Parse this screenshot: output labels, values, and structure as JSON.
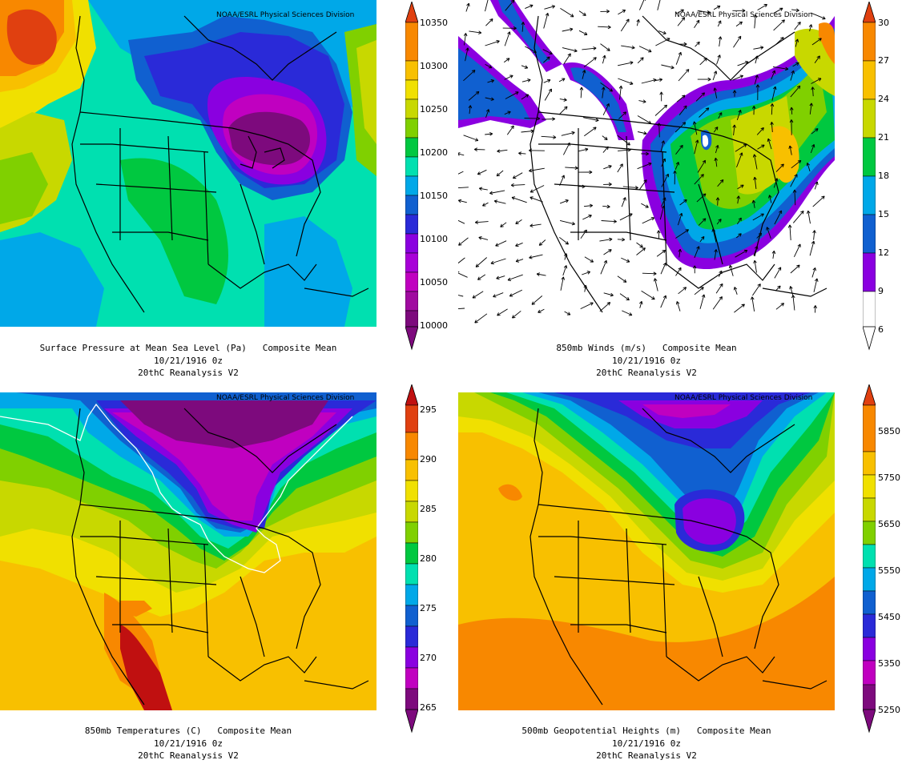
{
  "credit": "NOAA/ESRL Physical Sciences Division",
  "panels": [
    {
      "id": "slp",
      "caption_line1": "Surface Pressure at Mean Sea Level (Pa)   Composite Mean",
      "caption_line2": "10/21/1916 0z",
      "caption_line3": "20thC Reanalysis V2",
      "colorbar_labels": [
        "10350",
        "10300",
        "10250",
        "10200",
        "10150",
        "10100",
        "10050",
        "10000"
      ]
    },
    {
      "id": "winds",
      "caption_line1": "850mb Winds (m/s)   Composite Mean",
      "caption_line2": "10/21/1916 0z",
      "caption_line3": "20thC Reanalysis V2",
      "colorbar_labels": [
        "30",
        "27",
        "24",
        "21",
        "18",
        "15",
        "12",
        "9",
        "6"
      ]
    },
    {
      "id": "temp",
      "caption_line1": "850mb Temperatures (C)   Composite Mean",
      "caption_line2": "10/21/1916 0z",
      "caption_line3": "20thC Reanalysis V2",
      "colorbar_labels": [
        "295",
        "290",
        "285",
        "280",
        "275",
        "270",
        "265"
      ]
    },
    {
      "id": "hgt",
      "caption_line1": "500mb Geopotential Heights (m)   Composite Mean",
      "caption_line2": "10/21/1916 0z",
      "caption_line3": "20thC Reanalysis V2",
      "colorbar_labels": [
        "5850",
        "5750",
        "5650",
        "5550",
        "5450",
        "5350",
        "5250"
      ]
    }
  ],
  "colors": {
    "ramp": [
      "#7d0a7d",
      "#c000c0",
      "#8a00e0",
      "#2a2ad8",
      "#1060d0",
      "#00a8e8",
      "#00e0b0",
      "#00c840",
      "#80d000",
      "#c8d800",
      "#f0e000",
      "#f8c000",
      "#f88800",
      "#e04010",
      "#c01010"
    ],
    "white": "#ffffff"
  }
}
